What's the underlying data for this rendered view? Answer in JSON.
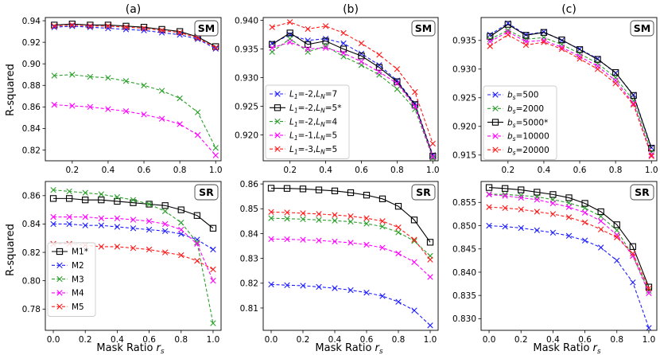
{
  "figure": {
    "xlabel_main": "Mask Ratio ",
    "xlabel_sym": "r",
    "xlabel_sub": "s",
    "ylabel": "R-squared"
  },
  "chart_data": [
    {
      "type": "line",
      "panel_title": "(a)",
      "badge": "SM",
      "xlim": [
        0.05,
        1.03
      ],
      "ylim": [
        0.81,
        0.943
      ],
      "xticks": [
        0.2,
        0.4,
        0.6,
        0.8,
        1.0
      ],
      "xtick_labels": [
        "0.2",
        "0.4",
        "0.6",
        "0.8",
        "1.0"
      ],
      "yticks": [
        0.82,
        0.84,
        0.86,
        0.88,
        0.9,
        0.92,
        0.94
      ],
      "ytick_labels": [
        "0.82",
        "0.84",
        "0.86",
        "0.88",
        "0.90",
        "0.92",
        "0.94"
      ],
      "x": [
        0.1,
        0.2,
        0.3,
        0.4,
        0.5,
        0.6,
        0.7,
        0.8,
        0.9,
        1.0
      ],
      "legend": null,
      "series": [
        {
          "name": "M1*",
          "color": "#000000",
          "marker": "square",
          "dashed": false,
          "values": [
            0.936,
            0.937,
            0.936,
            0.936,
            0.935,
            0.934,
            0.932,
            0.93,
            0.925,
            0.916
          ]
        },
        {
          "name": "M2",
          "color": "#1f1fff",
          "marker": "x",
          "dashed": true,
          "values": [
            0.934,
            0.935,
            0.934,
            0.933,
            0.932,
            0.931,
            0.929,
            0.927,
            0.923,
            0.914
          ]
        },
        {
          "name": "M3",
          "color": "#2ca02c",
          "marker": "x",
          "dashed": true,
          "values": [
            0.889,
            0.89,
            0.888,
            0.887,
            0.884,
            0.88,
            0.875,
            0.868,
            0.855,
            0.822
          ]
        },
        {
          "name": "M4",
          "color": "#ff00ff",
          "marker": "x",
          "dashed": true,
          "values": [
            0.862,
            0.861,
            0.86,
            0.858,
            0.856,
            0.853,
            0.849,
            0.844,
            0.834,
            0.815
          ]
        },
        {
          "name": "M5",
          "color": "#ff1a1a",
          "marker": "x",
          "dashed": true,
          "values": [
            0.935,
            0.936,
            0.935,
            0.935,
            0.934,
            0.933,
            0.931,
            0.929,
            0.924,
            0.915
          ]
        }
      ]
    },
    {
      "type": "line",
      "panel_title": "(b)",
      "badge": "SM",
      "xlim": [
        0.05,
        1.03
      ],
      "ylim": [
        0.9155,
        0.9405
      ],
      "xticks": [
        0.2,
        0.4,
        0.6,
        0.8,
        1.0
      ],
      "xtick_labels": [
        "0.2",
        "0.4",
        "0.6",
        "0.8",
        "1.0"
      ],
      "yticks": [
        0.92,
        0.925,
        0.93,
        0.935,
        0.94
      ],
      "ytick_labels": [
        "0.920",
        "0.925",
        "0.930",
        "0.935",
        "0.940"
      ],
      "x": [
        0.1,
        0.2,
        0.3,
        0.4,
        0.5,
        0.6,
        0.7,
        0.8,
        0.9,
        1.0
      ],
      "legend": "bottom-left",
      "series": [
        {
          "name_parts": [
            "L",
            "1",
            "=-2,",
            "L",
            "N",
            "=7"
          ],
          "color": "#1f1fff",
          "marker": "x",
          "dashed": true,
          "values": [
            0.936,
            0.9375,
            0.9365,
            0.9368,
            0.936,
            0.9342,
            0.9322,
            0.9295,
            0.9255,
            0.9165
          ]
        },
        {
          "name_parts": [
            "L",
            "1",
            "=-2,",
            "L",
            "N",
            "=5*"
          ],
          "color": "#000000",
          "marker": "square",
          "dashed": false,
          "values": [
            0.9358,
            0.9378,
            0.9358,
            0.9364,
            0.935,
            0.9338,
            0.9318,
            0.9293,
            0.9253,
            0.9163
          ]
        },
        {
          "name_parts": [
            "L",
            "1",
            "=-2,",
            "L",
            "N",
            "=4"
          ],
          "color": "#2ca02c",
          "marker": "x",
          "dashed": true,
          "values": [
            0.9345,
            0.9368,
            0.9345,
            0.9355,
            0.9337,
            0.9322,
            0.9305,
            0.928,
            0.9245,
            0.916
          ]
        },
        {
          "name_parts": [
            "L",
            "1",
            "=-1,",
            "L",
            "N",
            "=5"
          ],
          "color": "#ff00ff",
          "marker": "x",
          "dashed": true,
          "values": [
            0.9352,
            0.9362,
            0.935,
            0.9352,
            0.9343,
            0.9328,
            0.931,
            0.929,
            0.925,
            0.9162
          ]
        },
        {
          "name_parts": [
            "L",
            "1",
            "=-3,",
            "L",
            "N",
            "=5"
          ],
          "color": "#ff1a1a",
          "marker": "x",
          "dashed": true,
          "values": [
            0.9388,
            0.9397,
            0.9385,
            0.939,
            0.9378,
            0.936,
            0.934,
            0.9315,
            0.9275,
            0.9185
          ]
        }
      ]
    },
    {
      "type": "line",
      "panel_title": "(c)",
      "badge": "SM",
      "xlim": [
        0.05,
        1.03
      ],
      "ylim": [
        0.914,
        0.939
      ],
      "xticks": [
        0.2,
        0.4,
        0.6,
        0.8,
        1.0
      ],
      "xtick_labels": [
        "0.2",
        "0.4",
        "0.6",
        "0.8",
        "1.0"
      ],
      "yticks": [
        0.915,
        0.92,
        0.925,
        0.93,
        0.935
      ],
      "ytick_labels": [
        "0.915",
        "0.920",
        "0.925",
        "0.930",
        "0.935"
      ],
      "x": [
        0.1,
        0.2,
        0.3,
        0.4,
        0.5,
        0.6,
        0.7,
        0.8,
        0.9,
        1.0
      ],
      "legend": "bottom-left",
      "series": [
        {
          "name_parts": [
            "b",
            "s",
            "=500"
          ],
          "color": "#1f1fff",
          "marker": "x",
          "dashed": true,
          "values": [
            0.936,
            0.938,
            0.936,
            0.9365,
            0.935,
            0.9335,
            0.9318,
            0.9293,
            0.9255,
            0.9163
          ]
        },
        {
          "name_parts": [
            "b",
            "s",
            "=2000"
          ],
          "color": "#2ca02c",
          "marker": "x",
          "dashed": true,
          "values": [
            0.9352,
            0.9368,
            0.9352,
            0.9355,
            0.9343,
            0.9327,
            0.931,
            0.9285,
            0.9245,
            0.9155
          ]
        },
        {
          "name_parts": [
            "b",
            "s",
            "=5000*"
          ],
          "color": "#000000",
          "marker": "square",
          "dashed": false,
          "values": [
            0.9357,
            0.9378,
            0.9359,
            0.9364,
            0.9351,
            0.9334,
            0.9317,
            0.9294,
            0.9254,
            0.9162
          ]
        },
        {
          "name_parts": [
            "b",
            "s",
            "=10000"
          ],
          "color": "#ff00ff",
          "marker": "x",
          "dashed": true,
          "values": [
            0.9348,
            0.9365,
            0.9348,
            0.935,
            0.9338,
            0.9322,
            0.9305,
            0.928,
            0.924,
            0.915
          ]
        },
        {
          "name_parts": [
            "b",
            "s",
            "=20000"
          ],
          "color": "#ff1a1a",
          "marker": "x",
          "dashed": true,
          "values": [
            0.934,
            0.936,
            0.9342,
            0.9347,
            0.9335,
            0.9318,
            0.93,
            0.9275,
            0.9238,
            0.9148
          ]
        }
      ]
    },
    {
      "type": "line",
      "panel_title": "",
      "badge": "SR",
      "xlim": [
        -0.05,
        1.05
      ],
      "ylim": [
        0.765,
        0.87
      ],
      "xticks": [
        0.0,
        0.2,
        0.4,
        0.6,
        0.8,
        1.0
      ],
      "xtick_labels": [
        "0.0",
        "0.2",
        "0.4",
        "0.6",
        "0.8",
        "1.0"
      ],
      "yticks": [
        0.78,
        0.8,
        0.82,
        0.84,
        0.86
      ],
      "ytick_labels": [
        "0.78",
        "0.80",
        "0.82",
        "0.84",
        "0.86"
      ],
      "x": [
        0.0,
        0.1,
        0.2,
        0.3,
        0.4,
        0.5,
        0.6,
        0.7,
        0.8,
        0.9,
        1.0
      ],
      "legend": "bottom-left",
      "legend_labels": [
        "M1*",
        "M2",
        "M3",
        "M4",
        "M5"
      ],
      "series": [
        {
          "name": "M1*",
          "color": "#000000",
          "marker": "square",
          "dashed": false,
          "values": [
            0.858,
            0.858,
            0.857,
            0.857,
            0.856,
            0.855,
            0.854,
            0.853,
            0.85,
            0.846,
            0.837
          ]
        },
        {
          "name": "M2",
          "color": "#1f1fff",
          "marker": "x",
          "dashed": true,
          "values": [
            0.84,
            0.84,
            0.839,
            0.839,
            0.838,
            0.837,
            0.836,
            0.835,
            0.833,
            0.829,
            0.822
          ]
        },
        {
          "name": "M3",
          "color": "#2ca02c",
          "marker": "x",
          "dashed": true,
          "values": [
            0.864,
            0.863,
            0.862,
            0.861,
            0.859,
            0.857,
            0.854,
            0.849,
            0.841,
            0.827,
            0.77
          ]
        },
        {
          "name": "M4",
          "color": "#ff00ff",
          "marker": "x",
          "dashed": true,
          "values": [
            0.845,
            0.845,
            0.845,
            0.844,
            0.844,
            0.843,
            0.842,
            0.84,
            0.836,
            0.826,
            0.8
          ]
        },
        {
          "name": "M5",
          "color": "#ff1a1a",
          "marker": "x",
          "dashed": true,
          "values": [
            0.826,
            0.826,
            0.825,
            0.824,
            0.824,
            0.823,
            0.822,
            0.82,
            0.818,
            0.814,
            0.808
          ]
        }
      ]
    },
    {
      "type": "line",
      "panel_title": "",
      "badge": "SR",
      "xlim": [
        -0.05,
        1.05
      ],
      "ylim": [
        0.801,
        0.861
      ],
      "xticks": [
        0.0,
        0.2,
        0.4,
        0.6,
        0.8,
        1.0
      ],
      "xtick_labels": [
        "0.0",
        "0.2",
        "0.4",
        "0.6",
        "0.8",
        "1.0"
      ],
      "yticks": [
        0.81,
        0.82,
        0.83,
        0.84,
        0.85,
        0.86
      ],
      "ytick_labels": [
        "0.81",
        "0.82",
        "0.83",
        "0.84",
        "0.85",
        "0.86"
      ],
      "x": [
        0.0,
        0.1,
        0.2,
        0.3,
        0.4,
        0.5,
        0.6,
        0.7,
        0.8,
        0.9,
        1.0
      ],
      "legend": null,
      "series": [
        {
          "name": "L1=-2,LN=7",
          "color": "#1f1fff",
          "marker": "x",
          "dashed": true,
          "values": [
            0.8195,
            0.8192,
            0.819,
            0.8185,
            0.818,
            0.8172,
            0.8162,
            0.8148,
            0.8125,
            0.809,
            0.803
          ]
        },
        {
          "name": "L1=-2,LN=5*",
          "color": "#000000",
          "marker": "square",
          "dashed": false,
          "values": [
            0.8583,
            0.8582,
            0.858,
            0.8576,
            0.8572,
            0.8565,
            0.8555,
            0.854,
            0.851,
            0.8455,
            0.8365
          ]
        },
        {
          "name": "L1=-2,LN=4",
          "color": "#2ca02c",
          "marker": "x",
          "dashed": true,
          "values": [
            0.8462,
            0.846,
            0.8458,
            0.8455,
            0.8452,
            0.8448,
            0.844,
            0.8428,
            0.8405,
            0.837,
            0.831
          ]
        },
        {
          "name": "L1=-1,LN=5",
          "color": "#ff00ff",
          "marker": "x",
          "dashed": true,
          "values": [
            0.8378,
            0.8377,
            0.8375,
            0.8372,
            0.8368,
            0.8363,
            0.8355,
            0.8343,
            0.832,
            0.8285,
            0.8225
          ]
        },
        {
          "name": "L1=-3,LN=5",
          "color": "#ff1a1a",
          "marker": "x",
          "dashed": true,
          "values": [
            0.8487,
            0.8485,
            0.8482,
            0.8479,
            0.8475,
            0.847,
            0.8462,
            0.845,
            0.8425,
            0.8375,
            0.8295
          ]
        }
      ]
    },
    {
      "type": "line",
      "panel_title": "",
      "badge": "SR",
      "xlim": [
        -0.05,
        1.05
      ],
      "ylim": [
        0.8275,
        0.8595
      ],
      "xticks": [
        0.0,
        0.2,
        0.4,
        0.6,
        0.8,
        1.0
      ],
      "xtick_labels": [
        "0.0",
        "0.2",
        "0.4",
        "0.6",
        "0.8",
        "1.0"
      ],
      "yticks": [
        0.83,
        0.835,
        0.84,
        0.845,
        0.85,
        0.855
      ],
      "ytick_labels": [
        "0.830",
        "0.835",
        "0.840",
        "0.845",
        "0.850",
        "0.855"
      ],
      "x": [
        0.0,
        0.1,
        0.2,
        0.3,
        0.4,
        0.5,
        0.6,
        0.7,
        0.8,
        0.9,
        1.0
      ],
      "legend": null,
      "series": [
        {
          "name": "bs=500",
          "color": "#1f1fff",
          "marker": "x",
          "dashed": true,
          "values": [
            0.85,
            0.8498,
            0.8495,
            0.849,
            0.8485,
            0.8478,
            0.8468,
            0.8453,
            0.8425,
            0.8378,
            0.828
          ]
        },
        {
          "name": "bs=2000",
          "color": "#2ca02c",
          "marker": "x",
          "dashed": true,
          "values": [
            0.8568,
            0.8567,
            0.8565,
            0.8562,
            0.8556,
            0.8549,
            0.8538,
            0.852,
            0.849,
            0.8435,
            0.836
          ]
        },
        {
          "name": "bs=5000*",
          "color": "#000000",
          "marker": "square",
          "dashed": false,
          "values": [
            0.8582,
            0.858,
            0.8577,
            0.8572,
            0.8567,
            0.856,
            0.8548,
            0.853,
            0.8502,
            0.8455,
            0.8368
          ]
        },
        {
          "name": "bs=10000",
          "color": "#ff00ff",
          "marker": "x",
          "dashed": true,
          "values": [
            0.8567,
            0.8564,
            0.856,
            0.8556,
            0.8548,
            0.854,
            0.8528,
            0.851,
            0.848,
            0.8435,
            0.8355
          ]
        },
        {
          "name": "bs=20000",
          "color": "#ff1a1a",
          "marker": "x",
          "dashed": true,
          "values": [
            0.854,
            0.8538,
            0.8535,
            0.853,
            0.8525,
            0.8518,
            0.8507,
            0.8492,
            0.8475,
            0.844,
            0.8365
          ]
        }
      ]
    }
  ]
}
